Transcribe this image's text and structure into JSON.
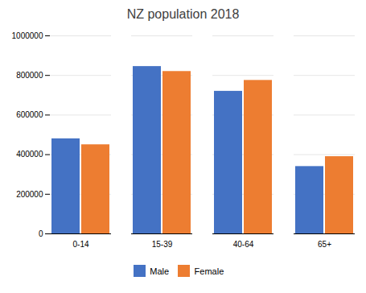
{
  "chart_data": {
    "type": "bar",
    "title": "NZ population 2018",
    "categories": [
      "0-14",
      "15-39",
      "40-64",
      "65+"
    ],
    "series": [
      {
        "name": "Male",
        "color": "#4472C4",
        "values": [
          480000,
          845000,
          720000,
          340000
        ]
      },
      {
        "name": "Female",
        "color": "#ED7D31",
        "values": [
          450000,
          820000,
          775000,
          390000
        ]
      }
    ],
    "ylim": [
      0,
      1000000
    ],
    "yticks": [
      0,
      200000,
      400000,
      600000,
      800000,
      1000000
    ],
    "grid": true,
    "legend": "bottom"
  }
}
